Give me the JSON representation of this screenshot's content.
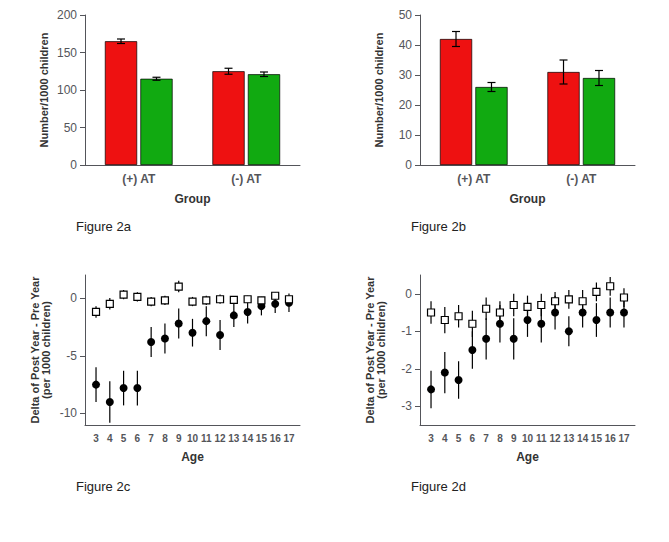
{
  "chart_data": [
    {
      "type": "bar",
      "title": "Figure 2a",
      "xlabel": "Group",
      "ylabel": "Number/1000 children",
      "categories": [
        "(+) AT",
        "(-) AT"
      ],
      "series": [
        {
          "color": "#EE1111",
          "values": [
            165,
            125
          ],
          "errors": [
            3,
            4
          ]
        },
        {
          "color": "#11AA11",
          "values": [
            115,
            121
          ],
          "errors": [
            2,
            3
          ]
        }
      ],
      "ylim": [
        0,
        200
      ],
      "yticks": [
        0,
        50,
        100,
        150,
        200
      ],
      "grid": false
    },
    {
      "type": "bar",
      "title": "Figure 2b",
      "xlabel": "Group",
      "ylabel": "Number/1000 children",
      "categories": [
        "(+) AT",
        "(-) AT"
      ],
      "series": [
        {
          "color": "#EE1111",
          "values": [
            42,
            31
          ],
          "errors": [
            2.5,
            4
          ]
        },
        {
          "color": "#11AA11",
          "values": [
            26,
            29
          ],
          "errors": [
            1.5,
            2.5
          ]
        }
      ],
      "ylim": [
        0,
        50
      ],
      "yticks": [
        0,
        10,
        20,
        30,
        40,
        50
      ],
      "grid": false
    },
    {
      "type": "scatter",
      "title": "Figure 2c",
      "xlabel": "Age",
      "ylabel": "Delta of Post Year - Pre Year\n(per 1000 children)",
      "x": [
        3,
        4,
        5,
        6,
        7,
        8,
        9,
        10,
        11,
        12,
        13,
        14,
        15,
        16,
        17
      ],
      "series": [
        {
          "color": "#000000",
          "marker": "circle",
          "values": [
            -7.5,
            -9.0,
            -7.8,
            -7.8,
            -3.8,
            -3.5,
            -2.2,
            -3.0,
            -2.0,
            -3.2,
            -1.5,
            -1.2,
            -0.7,
            -0.5,
            -0.4
          ],
          "errors": [
            1.5,
            1.8,
            1.5,
            1.5,
            1.3,
            1.3,
            1.3,
            1.2,
            1.3,
            1.3,
            1.0,
            1.0,
            0.8,
            0.8,
            0.8
          ]
        },
        {
          "color": "#000000",
          "marker": "square",
          "values": [
            -1.2,
            -0.5,
            0.3,
            0.1,
            -0.3,
            -0.2,
            1.0,
            -0.3,
            -0.2,
            -0.1,
            -0.15,
            -0.1,
            -0.2,
            0.2,
            -0.1
          ],
          "errors": [
            0.5,
            0.5,
            0.4,
            0.4,
            0.4,
            0.4,
            0.5,
            0.4,
            0.4,
            0.4,
            0.3,
            0.3,
            0.3,
            0.3,
            0.3
          ]
        }
      ],
      "xlim": [
        2.2,
        17.8
      ],
      "xticks": [
        3,
        4,
        5,
        6,
        7,
        8,
        9,
        10,
        11,
        12,
        13,
        14,
        15,
        16,
        17
      ],
      "ylim": [
        -11,
        2
      ],
      "yticks": [
        -10,
        -5,
        0
      ],
      "grid": false
    },
    {
      "type": "scatter",
      "title": "Figure 2d",
      "xlabel": "Age",
      "ylabel": "Delta of Post Year - Pre Year\n(per 1000 children)",
      "x": [
        3,
        4,
        5,
        6,
        7,
        8,
        9,
        10,
        11,
        12,
        13,
        14,
        15,
        16,
        17
      ],
      "series": [
        {
          "color": "#000000",
          "marker": "circle",
          "values": [
            -2.55,
            -2.1,
            -2.3,
            -1.5,
            -1.2,
            -0.8,
            -1.2,
            -0.7,
            -0.8,
            -0.5,
            -1.0,
            -0.5,
            -0.7,
            -0.5,
            -0.5
          ],
          "errors": [
            0.5,
            0.55,
            0.5,
            0.5,
            0.55,
            0.5,
            0.55,
            0.45,
            0.5,
            0.45,
            0.4,
            0.4,
            0.45,
            0.4,
            0.4
          ]
        },
        {
          "color": "#000000",
          "marker": "square",
          "values": [
            -0.5,
            -0.7,
            -0.6,
            -0.8,
            -0.4,
            -0.5,
            -0.3,
            -0.35,
            -0.3,
            -0.2,
            -0.15,
            -0.2,
            0.05,
            0.2,
            -0.1
          ],
          "errors": [
            0.3,
            0.35,
            0.3,
            0.35,
            0.3,
            0.3,
            0.3,
            0.3,
            0.3,
            0.25,
            0.25,
            0.3,
            0.25,
            0.25,
            0.25
          ]
        }
      ],
      "xlim": [
        2.2,
        17.8
      ],
      "xticks": [
        3,
        4,
        5,
        6,
        7,
        8,
        9,
        10,
        11,
        12,
        13,
        14,
        15,
        16,
        17
      ],
      "ylim": [
        -3.5,
        0.5
      ],
      "yticks": [
        -3,
        -2,
        -1,
        0
      ],
      "grid": false
    }
  ]
}
